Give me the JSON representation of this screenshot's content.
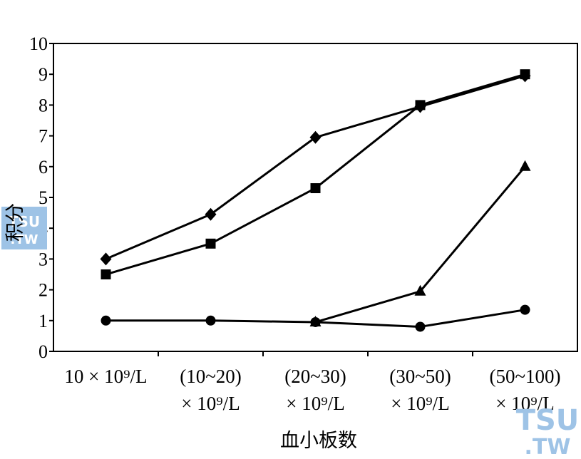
{
  "chart_data": {
    "type": "line",
    "categories": [
      [
        "10 × 10⁹/L"
      ],
      [
        "(10~20)",
        "× 10⁹/L"
      ],
      [
        "(20~30)",
        "× 10⁹/L"
      ],
      [
        "(30~50)",
        "× 10⁹/L"
      ],
      [
        "(50~100)",
        "× 10⁹/L"
      ]
    ],
    "series": [
      {
        "marker": "diamond",
        "values": [
          3.0,
          4.45,
          6.95,
          7.95,
          8.95
        ]
      },
      {
        "marker": "square",
        "values": [
          2.5,
          3.5,
          5.3,
          8.0,
          9.0
        ]
      },
      {
        "marker": "triangle",
        "values": [
          null,
          null,
          0.95,
          1.95,
          6.0
        ]
      },
      {
        "marker": "circle",
        "values": [
          1.0,
          1.0,
          0.95,
          0.8,
          1.35
        ]
      }
    ],
    "xlabel": "血小板数",
    "ylabel": "积分",
    "ylim": [
      0,
      10
    ],
    "yticks": [
      0,
      1,
      2,
      3,
      4,
      5,
      6,
      7,
      8,
      9,
      10
    ],
    "grid": false,
    "legend": "none",
    "line_color": "#000000"
  },
  "watermark": {
    "text_top": "TSU",
    "text_bottom": ".TW",
    "color": "#9ec3e6"
  }
}
